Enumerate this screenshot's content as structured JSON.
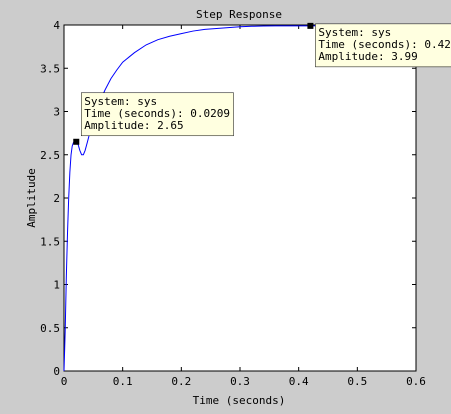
{
  "chart_data": {
    "type": "line",
    "title": "Step Response",
    "xlabel": "Time (seconds)",
    "ylabel": "Amplitude",
    "xlim": [
      0,
      0.6
    ],
    "ylim": [
      0,
      4
    ],
    "grid": false,
    "x_ticks": [
      "0",
      "0.1",
      "0.2",
      "0.3",
      "0.4",
      "0.5",
      "0.6"
    ],
    "y_ticks": [
      "0",
      "0.5",
      "1",
      "1.5",
      "2",
      "2.5",
      "3",
      "3.5",
      "4"
    ],
    "series": [
      {
        "color": "#0000ff",
        "x": [
          0,
          0.002,
          0.004,
          0.006,
          0.008,
          0.01,
          0.012,
          0.014,
          0.016,
          0.018,
          0.0209,
          0.024,
          0.027,
          0.03,
          0.033,
          0.036,
          0.04,
          0.045,
          0.05,
          0.06,
          0.07,
          0.08,
          0.09,
          0.1,
          0.12,
          0.14,
          0.16,
          0.18,
          0.2,
          0.22,
          0.24,
          0.26,
          0.28,
          0.3,
          0.32,
          0.34,
          0.36,
          0.38,
          0.4,
          0.42,
          0.45,
          0.5,
          0.55,
          0.6
        ],
        "y": [
          0,
          0.45,
          1.1,
          1.6,
          2.0,
          2.3,
          2.5,
          2.6,
          2.64,
          2.65,
          2.65,
          2.62,
          2.55,
          2.5,
          2.5,
          2.55,
          2.65,
          2.78,
          2.9,
          3.1,
          3.25,
          3.38,
          3.48,
          3.57,
          3.68,
          3.77,
          3.83,
          3.87,
          3.9,
          3.93,
          3.95,
          3.96,
          3.97,
          3.98,
          3.985,
          3.988,
          3.99,
          3.99,
          3.99,
          3.99,
          3.992,
          3.995,
          3.998,
          4.0
        ]
      }
    ],
    "datatips": [
      {
        "x": 0.0209,
        "y": 2.65,
        "lines": [
          "System: sys",
          "Time (seconds): 0.0209",
          "Amplitude: 2.65"
        ]
      },
      {
        "x": 0.42,
        "y": 3.99,
        "lines": [
          "System: sys",
          "Time (seconds): 0.42",
          "Amplitude: 3.99"
        ]
      }
    ]
  }
}
